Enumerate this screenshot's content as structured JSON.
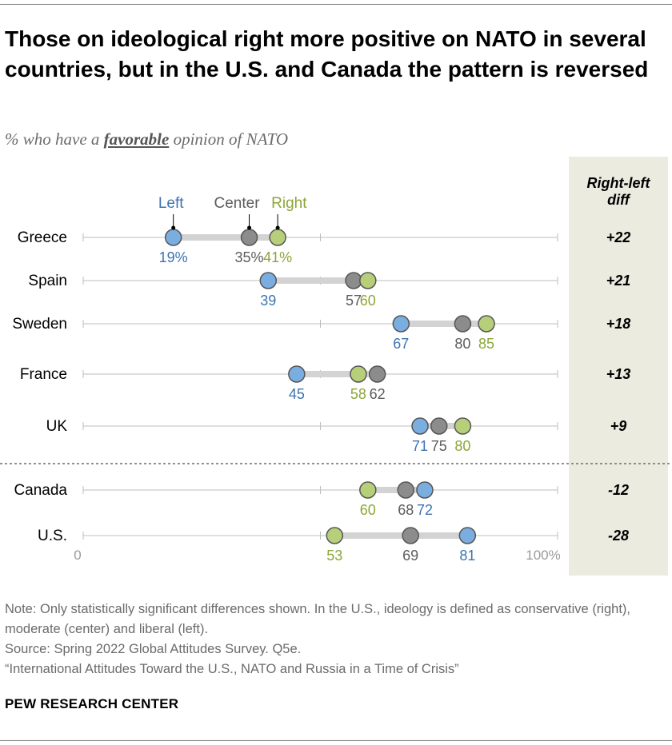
{
  "title": "Those on ideological right more positive on NATO in several countries, but in the U.S. and Canada the pattern is reversed",
  "subtitle": {
    "prefix": "% who have a ",
    "emphasis": "favorable",
    "suffix": " opinion of NATO"
  },
  "colors": {
    "left": "#7aaee0",
    "left_text": "#3d74b0",
    "center": "#8c8c8c",
    "center_text": "#5c5c5c",
    "right": "#b8cf7a",
    "right_text": "#8ba638",
    "connector": "#d3d3d3",
    "axis": "#bdbdbd",
    "diff_panel": "#ecebe0"
  },
  "chart_data": {
    "type": "dot-range",
    "title": "Those on ideological right more positive on NATO in several countries, but in the U.S. and Canada the pattern is reversed",
    "subtitle": "% who have a favorable opinion of NATO",
    "xlim": [
      0,
      100
    ],
    "axis_labels": [
      "0",
      "100%"
    ],
    "legend": {
      "left": "Left",
      "center": "Center",
      "right": "Right"
    },
    "diff_header": "Right-left diff",
    "groups": [
      {
        "rows": [
          {
            "country": "Greece",
            "left": 19,
            "center": 35,
            "right": 41,
            "diff": "+22",
            "labels": {
              "left": "19%",
              "center": "35%",
              "right": "41%"
            }
          },
          {
            "country": "Spain",
            "left": 39,
            "center": 57,
            "right": 60,
            "diff": "+21",
            "labels": {
              "left": "39",
              "center": "57",
              "right": "60"
            }
          },
          {
            "country": "Sweden",
            "left": 67,
            "center": 80,
            "right": 85,
            "diff": "+18",
            "labels": {
              "left": "67",
              "center": "80",
              "right": "85"
            }
          },
          {
            "country": "France",
            "left": 45,
            "center": 62,
            "right": 58,
            "diff": "+13",
            "labels": {
              "left": "45",
              "center": "62",
              "right": "58"
            }
          },
          {
            "country": "UK",
            "left": 71,
            "center": 75,
            "right": 80,
            "diff": "+9",
            "labels": {
              "left": "71",
              "center": "75",
              "right": "80"
            }
          }
        ]
      },
      {
        "rows": [
          {
            "country": "Canada",
            "left": 72,
            "center": 68,
            "right": 60,
            "diff": "-12",
            "labels": {
              "left": "72",
              "center": "68",
              "right": "60"
            }
          },
          {
            "country": "U.S.",
            "left": 81,
            "center": 69,
            "right": 53,
            "diff": "-28",
            "labels": {
              "left": "81",
              "center": "69",
              "right": "53"
            }
          }
        ]
      }
    ]
  },
  "notes": {
    "note": "Note: Only statistically significant differences shown. In the U.S., ideology is defined as conservative (right), moderate (center) and liberal (left).",
    "source": "Source: Spring 2022 Global Attitudes Survey. Q5e.",
    "report": "“International Attitudes Toward the U.S., NATO and Russia in a Time of Crisis”"
  },
  "brand": "PEW RESEARCH CENTER"
}
